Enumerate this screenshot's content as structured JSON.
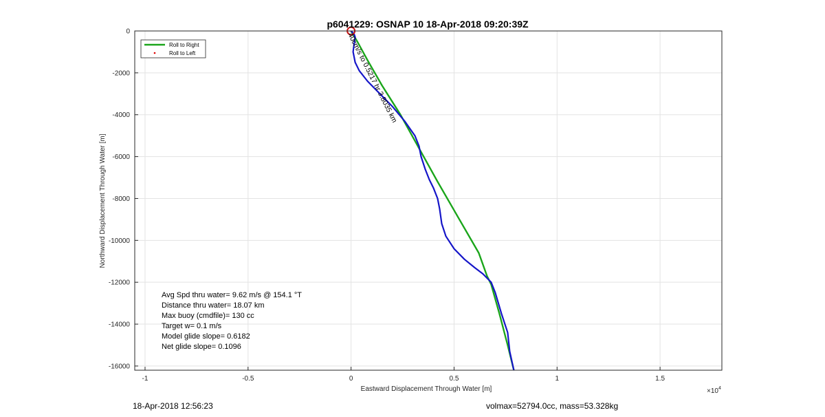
{
  "chart_data": {
    "type": "line",
    "title": "p6041229: OSNAP 10 18-Apr-2018 09:20:39Z",
    "xlabel": "Eastward Displacement Through Water [m]",
    "ylabel": "Northward Displacement Through Water [m]",
    "x_exponent_label": "×10",
    "x_exponent_power": "4",
    "xlim": [
      -1.05,
      1.8
    ],
    "ylim": [
      -16200,
      0
    ],
    "x_ticks": [
      -1,
      -0.5,
      0,
      0.5,
      1,
      1.5
    ],
    "x_tick_labels": [
      "-1",
      "-0.5",
      "0",
      "0.5",
      "1",
      "1.5"
    ],
    "y_ticks": [
      0,
      -2000,
      -4000,
      -6000,
      -8000,
      -10000,
      -12000,
      -14000,
      -16000
    ],
    "y_tick_labels": [
      "0",
      "-2000",
      "-4000",
      "-6000",
      "-8000",
      "-10000",
      "-12000",
      "-14000",
      "-16000"
    ],
    "grid": true,
    "legend": {
      "position": "top-left",
      "entries": [
        {
          "label": "Roll to Right",
          "color": "#1aa51a",
          "style": "line"
        },
        {
          "label": "Roll to Left",
          "color": "#e00000",
          "style": "dot"
        }
      ]
    },
    "series": [
      {
        "color": "#1aa51a",
        "x": [
          0,
          0.03,
          0.08,
          0.15,
          0.24,
          0.33,
          0.42,
          0.52,
          0.62,
          0.66,
          0.68,
          0.72,
          0.76,
          0.79
        ],
        "y": [
          0,
          -500,
          -1400,
          -2600,
          -4000,
          -5600,
          -7200,
          -8900,
          -10600,
          -11700,
          -12100,
          -13500,
          -15000,
          -16200
        ]
      },
      {
        "color": "#1515c8",
        "x": [
          0,
          0.015,
          0.02,
          0.015,
          0.01,
          0.02,
          0.04,
          0.08,
          0.14,
          0.2,
          0.26,
          0.31,
          0.33,
          0.34,
          0.36,
          0.38,
          0.4,
          0.42,
          0.43,
          0.44,
          0.46,
          0.5,
          0.55,
          0.6,
          0.64,
          0.67,
          0.68,
          0.7,
          0.73,
          0.76,
          0.77,
          0.79
        ],
        "y": [
          0,
          -150,
          -300,
          -600,
          -1000,
          -1500,
          -1900,
          -2400,
          -3000,
          -3600,
          -4300,
          -5000,
          -5500,
          -6000,
          -6600,
          -7100,
          -7500,
          -8000,
          -8500,
          -9200,
          -9800,
          -10400,
          -10900,
          -11300,
          -11600,
          -11900,
          -12000,
          -12500,
          -13500,
          -14400,
          -15300,
          -16200
        ]
      }
    ],
    "start_marker": {
      "x": 0,
      "y": 0,
      "color": "#c81414"
    },
    "path_annotation": "40cm/s to 0.5217 hr 3.8035 km",
    "annotations": [
      "Avg Spd thru water=  9.62 m/s @ 154.1 °T",
      "Distance thru water= 18.07 km",
      "Max buoy (cmdfile)= 130 cc",
      "Target w= 0.1 m/s",
      "Model glide slope= 0.6182",
      "Net glide slope= 0.1096"
    ]
  },
  "footer": {
    "left": "18-Apr-2018 12:56:23",
    "right": "volmax=52794.0cc, mass=53.328kg"
  }
}
